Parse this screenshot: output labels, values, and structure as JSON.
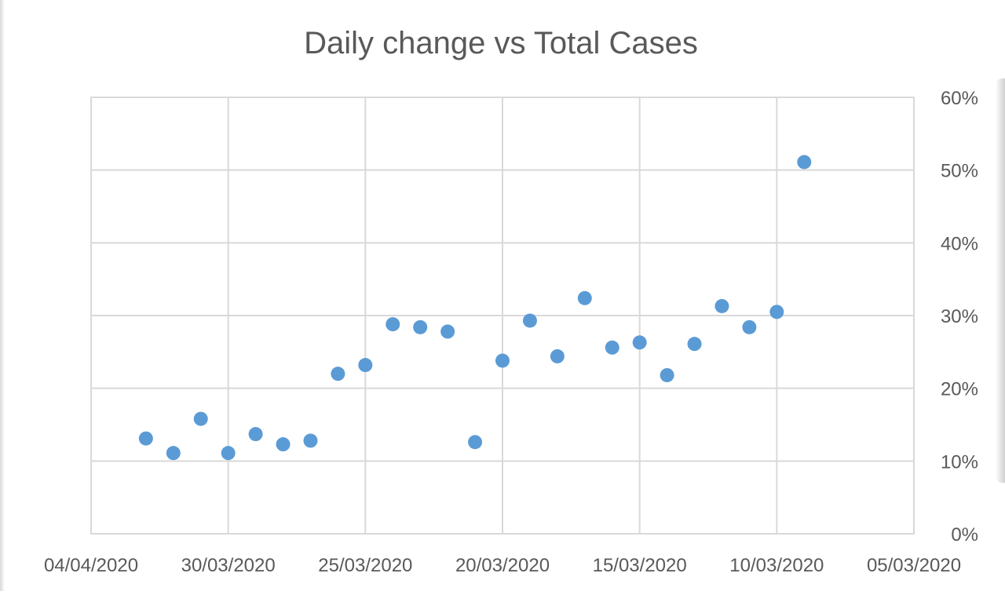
{
  "chart_data": {
    "type": "scatter",
    "title": "Daily change vs Total Cases",
    "xlabel": "",
    "ylabel": "",
    "x_axis_reversed": true,
    "x_axis_type": "date",
    "y_axis_position": "right",
    "y_format": "percent",
    "xlim": [
      "04/04/2020",
      "05/03/2020"
    ],
    "ylim": [
      0,
      60
    ],
    "x_ticks": [
      "04/04/2020",
      "30/03/2020",
      "25/03/2020",
      "20/03/2020",
      "15/03/2020",
      "10/03/2020",
      "05/03/2020"
    ],
    "y_ticks": [
      "0%",
      "10%",
      "20%",
      "30%",
      "40%",
      "50%",
      "60%"
    ],
    "grid": true,
    "legend": "none",
    "marker_color": "#5b9bd5",
    "points": [
      {
        "x": "02/04/2020",
        "y": 13.1
      },
      {
        "x": "01/04/2020",
        "y": 11.1
      },
      {
        "x": "31/03/2020",
        "y": 15.8
      },
      {
        "x": "30/03/2020",
        "y": 11.1
      },
      {
        "x": "29/03/2020",
        "y": 13.7
      },
      {
        "x": "28/03/2020",
        "y": 12.3
      },
      {
        "x": "27/03/2020",
        "y": 12.8
      },
      {
        "x": "26/03/2020",
        "y": 22.0
      },
      {
        "x": "25/03/2020",
        "y": 23.2
      },
      {
        "x": "24/03/2020",
        "y": 28.8
      },
      {
        "x": "23/03/2020",
        "y": 28.4
      },
      {
        "x": "22/03/2020",
        "y": 27.8
      },
      {
        "x": "21/03/2020",
        "y": 12.6
      },
      {
        "x": "20/03/2020",
        "y": 23.8
      },
      {
        "x": "19/03/2020",
        "y": 29.3
      },
      {
        "x": "18/03/2020",
        "y": 24.4
      },
      {
        "x": "17/03/2020",
        "y": 32.4
      },
      {
        "x": "16/03/2020",
        "y": 25.6
      },
      {
        "x": "15/03/2020",
        "y": 26.3
      },
      {
        "x": "14/03/2020",
        "y": 21.8
      },
      {
        "x": "13/03/2020",
        "y": 26.1
      },
      {
        "x": "12/03/2020",
        "y": 31.3
      },
      {
        "x": "11/03/2020",
        "y": 28.4
      },
      {
        "x": "10/03/2020",
        "y": 30.5
      },
      {
        "x": "09/03/2020",
        "y": 51.1
      }
    ]
  }
}
